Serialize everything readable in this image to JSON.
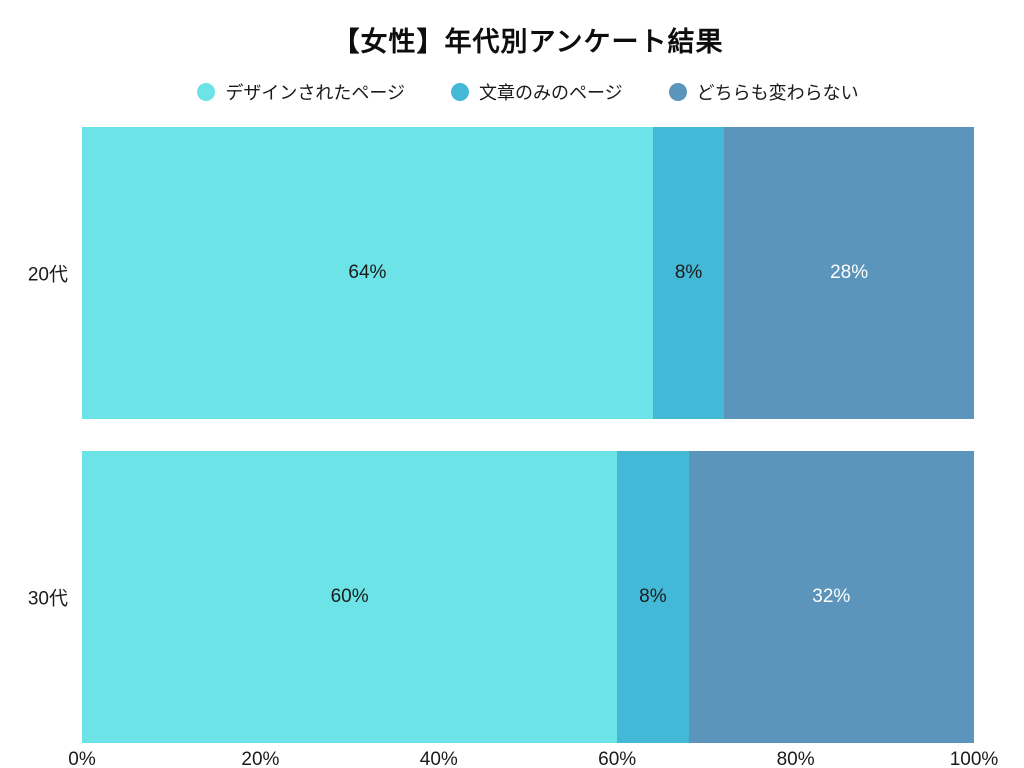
{
  "title": "【女性】年代別アンケート結果",
  "colors": {
    "designed_page": "#6CE3E6",
    "text_only_page": "#44B8D7",
    "no_change": "#5B95BB",
    "background": "#ffffff",
    "label_dark": "#1c1c1c",
    "label_light": "#ffffff"
  },
  "legend": {
    "items": [
      {
        "label": "デザインされたページ",
        "color": "#6CE3E6"
      },
      {
        "label": "文章のみのページ",
        "color": "#44B8D7"
      },
      {
        "label": "どちらも変わらない",
        "color": "#5B95BB"
      }
    ]
  },
  "chart_data": {
    "type": "bar",
    "orientation": "horizontal",
    "stacked": true,
    "title": "【女性】年代別アンケート結果",
    "categories": [
      "20代",
      "30代"
    ],
    "series": [
      {
        "name": "デザインされたページ",
        "color": "#6CE3E6",
        "values": [
          64,
          60
        ]
      },
      {
        "name": "文章のみのページ",
        "color": "#44B8D7",
        "values": [
          8,
          8
        ]
      },
      {
        "name": "どちらも変わらない",
        "color": "#5B95BB",
        "values": [
          28,
          32
        ]
      }
    ],
    "value_labels": [
      [
        "64%",
        "8%",
        "28%"
      ],
      [
        "60%",
        "8%",
        "32%"
      ]
    ],
    "x_ticks": [
      "0%",
      "20%",
      "40%",
      "60%",
      "80%",
      "100%"
    ],
    "xlim": [
      0,
      100
    ],
    "xlabel": "",
    "ylabel": "",
    "grid": false,
    "legend_position": "top"
  }
}
